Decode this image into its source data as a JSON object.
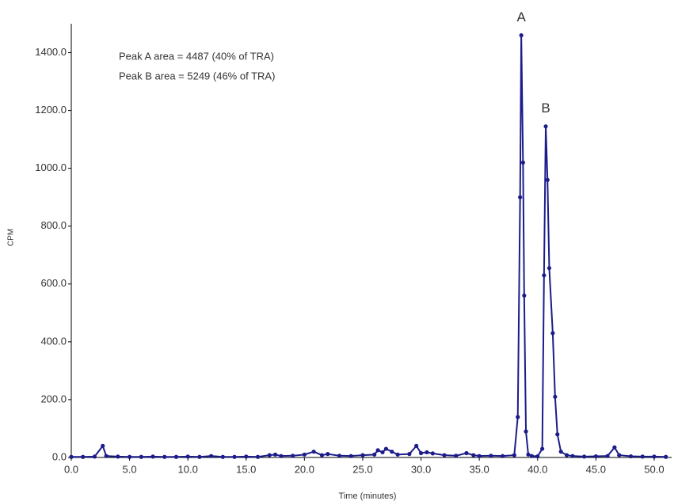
{
  "chart_data": {
    "type": "line",
    "annotations": [
      "Peak A area = 4487 (40% of TRA)",
      "Peak B area = 5249 (46% of TRA)"
    ],
    "peak_labels": [
      "A",
      "B"
    ],
    "x_label": "Time (minutes)",
    "y_label": "CPM",
    "color": "#1c1c8a",
    "x": [
      0,
      1,
      2,
      2.7,
      3,
      4,
      5,
      6,
      7,
      8,
      9,
      10,
      11,
      12,
      13,
      14,
      15,
      16,
      17,
      17.5,
      18,
      19,
      20,
      20.8,
      21.5,
      22,
      23,
      24,
      25,
      26,
      26.3,
      26.7,
      27,
      27.5,
      28,
      29,
      29.6,
      30,
      30.5,
      31,
      32,
      33,
      33.9,
      34.5,
      35,
      36,
      37,
      38,
      38.3,
      38.5,
      38.6,
      38.75,
      38.85,
      39,
      39.2,
      39.5,
      40,
      40.4,
      40.55,
      40.7,
      40.85,
      41,
      41.3,
      41.5,
      41.7,
      42,
      42.5,
      43,
      44,
      45,
      46,
      46.6,
      47,
      48,
      49,
      50,
      51
    ],
    "values": [
      2,
      2,
      3,
      40,
      5,
      3,
      2,
      2,
      3,
      2,
      2,
      3,
      2,
      5,
      2,
      2,
      3,
      2,
      8,
      10,
      5,
      6,
      10,
      20,
      8,
      12,
      6,
      5,
      8,
      10,
      25,
      18,
      30,
      20,
      10,
      12,
      40,
      15,
      18,
      14,
      8,
      6,
      15,
      8,
      5,
      6,
      5,
      8,
      140,
      900,
      1460,
      1020,
      560,
      90,
      10,
      5,
      4,
      30,
      630,
      1145,
      960,
      655,
      430,
      210,
      80,
      20,
      8,
      5,
      3,
      4,
      5,
      35,
      8,
      4,
      3,
      3,
      2
    ],
    "xlim": [
      0,
      51.5
    ],
    "ylim": [
      0,
      1500
    ],
    "xticks": [
      {
        "value": 0,
        "label": "0.0"
      },
      {
        "value": 5,
        "label": "5.0"
      },
      {
        "value": 10,
        "label": "10.0"
      },
      {
        "value": 15,
        "label": "15.0"
      },
      {
        "value": 20,
        "label": "20.0"
      },
      {
        "value": 25,
        "label": "25.0"
      },
      {
        "value": 30,
        "label": "30.0"
      },
      {
        "value": 35,
        "label": "35.0"
      },
      {
        "value": 40,
        "label": "40.0"
      },
      {
        "value": 45,
        "label": "45.0"
      },
      {
        "value": 50,
        "label": "50.0"
      }
    ],
    "yticks": [
      {
        "value": 0,
        "label": "0.0"
      },
      {
        "value": 200,
        "label": "200.0"
      },
      {
        "value": 400,
        "label": "400.0"
      },
      {
        "value": 600,
        "label": "600.0"
      },
      {
        "value": 800,
        "label": "800.0"
      },
      {
        "value": 1000,
        "label": "1000.0"
      },
      {
        "value": 1200,
        "label": "1200.0"
      },
      {
        "value": 1400,
        "label": "1400.0"
      }
    ]
  }
}
